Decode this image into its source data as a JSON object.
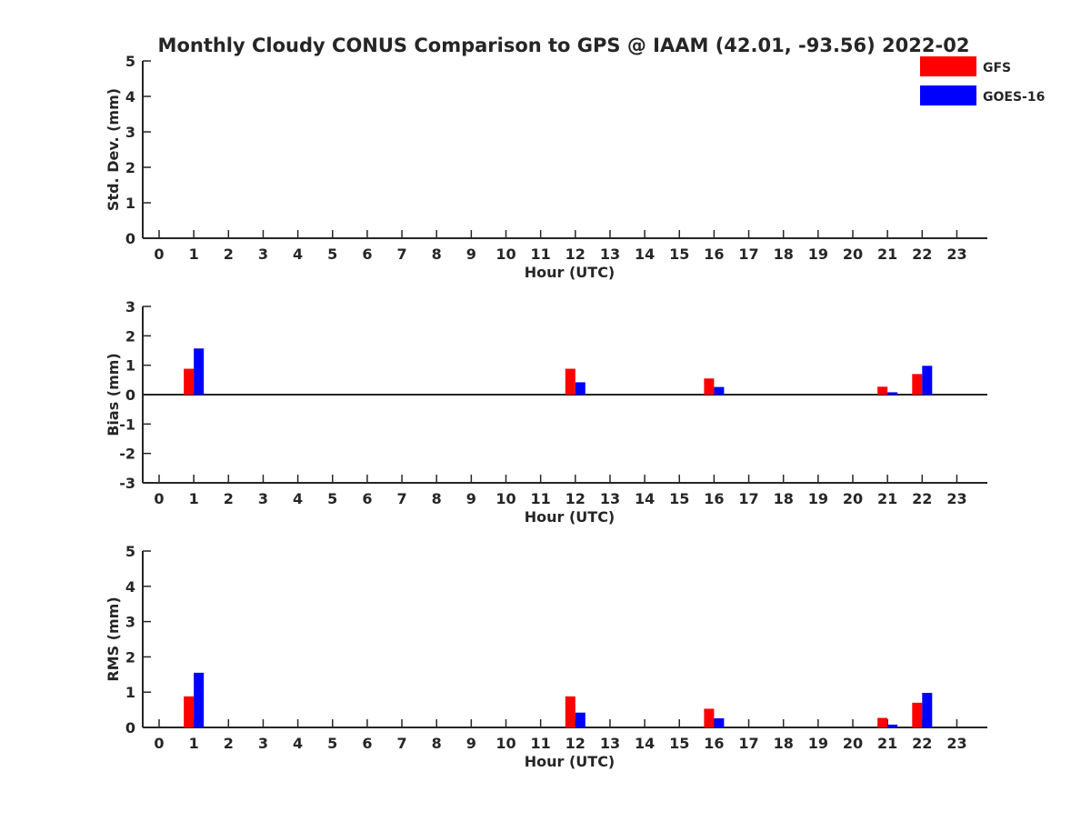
{
  "chart_data": {
    "type": "bar",
    "title": "Monthly Cloudy CONUS Comparison to GPS @ IAAM (42.01, -93.56) 2022-02",
    "legend": {
      "placement": "top-right",
      "entries": [
        {
          "name": "GFS",
          "color": "#ff0000"
        },
        {
          "name": "GOES-16",
          "color": "#0000ff"
        }
      ]
    },
    "colors": {
      "GFS": "#ff0000",
      "GOES-16": "#0000ff",
      "axis": "#262626"
    },
    "categories": [
      "0",
      "1",
      "2",
      "3",
      "4",
      "5",
      "6",
      "7",
      "8",
      "9",
      "10",
      "11",
      "12",
      "13",
      "14",
      "15",
      "16",
      "17",
      "18",
      "19",
      "20",
      "21",
      "22",
      "23"
    ],
    "panels": [
      {
        "xlabel": "Hour (UTC)",
        "ylabel": "Std. Dev. (mm)",
        "ylim": [
          0,
          5
        ],
        "yticks": [
          "0",
          "1",
          "2",
          "3",
          "4",
          "5"
        ],
        "grid": false,
        "series": [
          {
            "name": "GFS",
            "values": [
              null,
              null,
              null,
              null,
              null,
              null,
              null,
              null,
              null,
              null,
              null,
              null,
              null,
              null,
              null,
              null,
              null,
              null,
              null,
              null,
              null,
              null,
              null,
              null
            ]
          },
          {
            "name": "GOES-16",
            "values": [
              null,
              null,
              null,
              null,
              null,
              null,
              null,
              null,
              null,
              null,
              null,
              null,
              null,
              null,
              null,
              null,
              null,
              null,
              null,
              null,
              null,
              null,
              null,
              null
            ]
          }
        ]
      },
      {
        "xlabel": "Hour (UTC)",
        "ylabel": "Bias (mm)",
        "ylim": [
          -3,
          3
        ],
        "yticks": [
          "-3",
          "-2",
          "-1",
          "0",
          "1",
          "2",
          "3"
        ],
        "grid": false,
        "zero_line": true,
        "series": [
          {
            "name": "GFS",
            "values": [
              null,
              0.88,
              null,
              null,
              null,
              null,
              null,
              null,
              null,
              null,
              null,
              null,
              0.88,
              null,
              null,
              null,
              0.55,
              null,
              null,
              null,
              null,
              0.27,
              0.7,
              null
            ]
          },
          {
            "name": "GOES-16",
            "values": [
              null,
              1.57,
              null,
              null,
              null,
              null,
              null,
              null,
              null,
              null,
              null,
              null,
              0.42,
              null,
              null,
              null,
              0.26,
              null,
              null,
              null,
              null,
              0.08,
              0.98,
              null
            ]
          }
        ]
      },
      {
        "xlabel": "Hour (UTC)",
        "ylabel": "RMS (mm)",
        "ylim": [
          0,
          5
        ],
        "yticks": [
          "0",
          "1",
          "2",
          "3",
          "4",
          "5"
        ],
        "grid": false,
        "series": [
          {
            "name": "GFS",
            "values": [
              null,
              0.88,
              null,
              null,
              null,
              null,
              null,
              null,
              null,
              null,
              null,
              null,
              0.88,
              null,
              null,
              null,
              0.53,
              null,
              null,
              null,
              null,
              0.27,
              0.7,
              null
            ]
          },
          {
            "name": "GOES-16",
            "values": [
              null,
              1.55,
              null,
              null,
              null,
              null,
              null,
              null,
              null,
              null,
              null,
              null,
              0.42,
              null,
              null,
              null,
              0.26,
              null,
              null,
              null,
              null,
              0.08,
              0.98,
              null
            ]
          }
        ]
      }
    ]
  }
}
